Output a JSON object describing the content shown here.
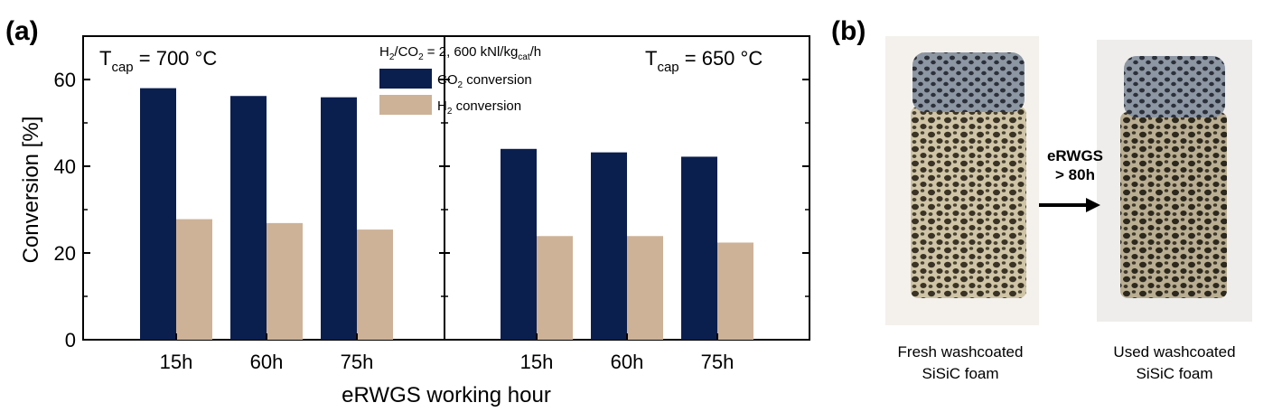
{
  "panel_a": {
    "label": "(a)",
    "temp_left": {
      "prefix": "T",
      "sub": "cap",
      "rest": " = 700 °C"
    },
    "temp_right": {
      "prefix": "T",
      "sub": "cap",
      "rest": " = 650 °C"
    },
    "condition": {
      "p1": "H",
      "s1": "2",
      "p2": "/CO",
      "s2": "2",
      "p3": " = 2, 600 kNl/kg",
      "s3": "cat",
      "p4": "/h"
    }
  },
  "panel_b": {
    "label": "(b)",
    "arrow_line1": "eRWGS",
    "arrow_line2": "> 80h",
    "caption_left": [
      "Fresh washcoated",
      "SiSiC foam"
    ],
    "caption_right": [
      "Used washcoated",
      "SiSiC foam"
    ]
  },
  "colors": {
    "co2": "#0b1f4f",
    "h2": "#cdb298",
    "foam_fresh": "#857c63",
    "foam_used": "#6f6a58",
    "foam_top": "#5b6675"
  },
  "chart_data": {
    "type": "bar",
    "xlabel": "eRWGS working hour",
    "ylabel": "Conversion [%]",
    "ylim": [
      0,
      70
    ],
    "yticks": [
      0,
      20,
      40,
      60
    ],
    "legend_placement": "top-center",
    "groups": [
      {
        "condition": "T_cap = 700 °C",
        "categories": [
          "15h",
          "60h",
          "75h"
        ],
        "series": [
          {
            "name": "CO2 conversion",
            "legend": {
              "p": "CO",
              "s": "2",
              "r": " conversion"
            },
            "values": [
              58,
              56.2,
              55.9
            ]
          },
          {
            "name": "H2 conversion",
            "legend": {
              "p": "H",
              "s": "2",
              "r": " conversion"
            },
            "values": [
              27.8,
              26.9,
              25.4
            ]
          }
        ]
      },
      {
        "condition": "T_cap = 650 °C",
        "categories": [
          "15h",
          "60h",
          "75h"
        ],
        "series": [
          {
            "name": "CO2 conversion",
            "values": [
              44,
              43.2,
              42.2
            ]
          },
          {
            "name": "H2 conversion",
            "values": [
              23.9,
              23.9,
              22.4
            ]
          }
        ]
      }
    ]
  }
}
